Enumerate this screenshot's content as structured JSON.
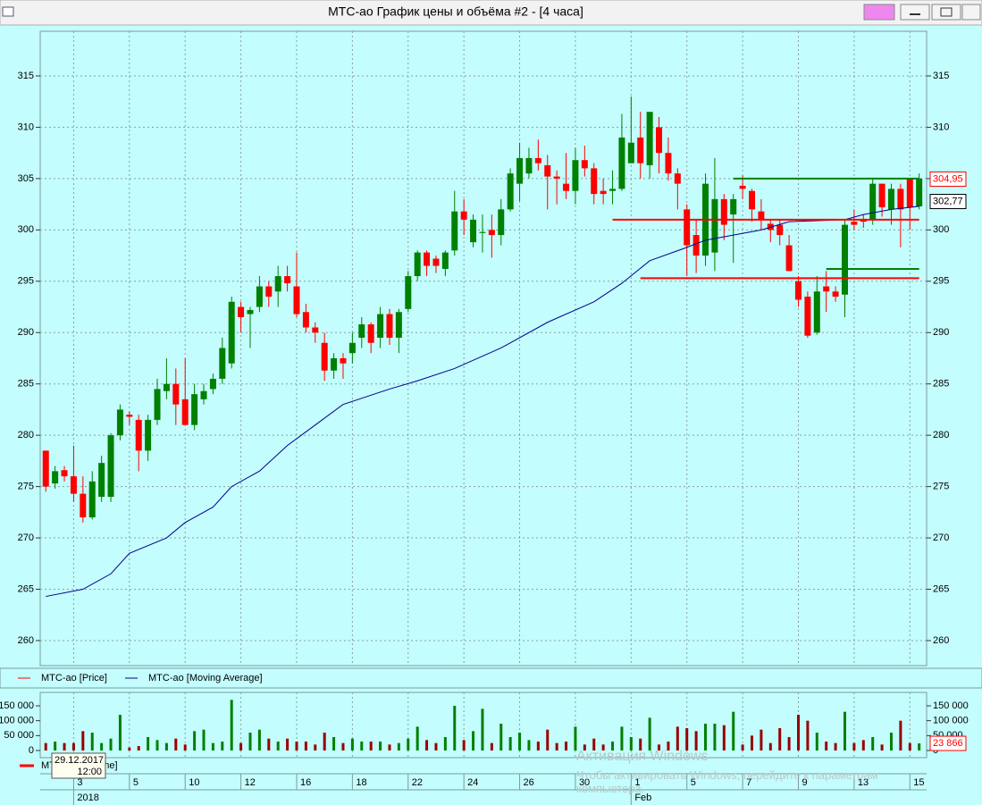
{
  "window": {
    "title": "МТС-ао График цены и объёма #2 - [4 часа]"
  },
  "tooltip": {
    "date": "29.12.2017",
    "time": "12:00"
  },
  "watermark": {
    "title": "Активация Windows",
    "text": "Чтобы активировать Windows, перейдите к параметрам компьютера."
  },
  "chart_data": [
    {
      "type": "candlestick",
      "xlim": [
        -0.6,
        94.8
      ],
      "ylim": [
        257.56,
        319.35
      ],
      "yticks": [
        260,
        265,
        270,
        275,
        280,
        285,
        290,
        295,
        300,
        305,
        310,
        315
      ],
      "grid": true,
      "categories": [
        null,
        null,
        null,
        "3",
        null,
        null,
        null,
        null,
        null,
        "5",
        null,
        null,
        null,
        null,
        null,
        "10",
        null,
        null,
        null,
        null,
        null,
        "12",
        null,
        null,
        null,
        null,
        null,
        "16",
        null,
        null,
        null,
        null,
        null,
        "18",
        null,
        null,
        null,
        null,
        null,
        "22",
        null,
        null,
        null,
        null,
        null,
        "24",
        null,
        null,
        null,
        null,
        null,
        "26",
        null,
        null,
        null,
        null,
        null,
        "30",
        null,
        null,
        null,
        null,
        null,
        "1",
        null,
        null,
        null,
        null,
        null,
        "5",
        null,
        null,
        null,
        null,
        null,
        "7",
        null,
        null,
        null,
        null,
        null,
        "9",
        null,
        null,
        null,
        null,
        null,
        "13",
        null,
        null,
        null,
        null,
        null,
        "15",
        null
      ],
      "categories2": [
        null,
        null,
        null,
        "2018",
        null,
        null,
        null,
        null,
        null,
        null,
        null,
        null,
        null,
        null,
        null,
        null,
        null,
        null,
        null,
        null,
        null,
        null,
        null,
        null,
        null,
        null,
        null,
        null,
        null,
        null,
        null,
        null,
        null,
        null,
        null,
        null,
        null,
        null,
        null,
        null,
        null,
        null,
        null,
        null,
        null,
        null,
        null,
        null,
        null,
        null,
        null,
        null,
        null,
        null,
        null,
        null,
        null,
        null,
        null,
        null,
        null,
        null,
        null,
        "Feb",
        null,
        null,
        null,
        null,
        null,
        null,
        null,
        null,
        null,
        null,
        null,
        null,
        null,
        null,
        null,
        null,
        null,
        null,
        null,
        null,
        null,
        null,
        null,
        null,
        null,
        null,
        null,
        null,
        null,
        null,
        null
      ],
      "series": [
        {
          "name": "МТС-ао [Price]",
          "color": "#ff0000",
          "up_color": "#008000",
          "open": [
            278.5,
            275.3,
            276.6,
            276,
            274.3,
            272,
            274,
            274,
            280,
            282,
            281.5,
            278.5,
            281.5,
            284.3,
            285,
            283.5,
            281,
            283.5,
            284.5,
            285.5,
            287,
            292.5,
            291.8,
            292.5,
            294.5,
            294,
            295.5,
            294.5,
            292,
            290.5,
            289,
            286.3,
            287.5,
            288,
            289.5,
            290.8,
            289.5,
            291.8,
            289.5,
            292.3,
            295.5,
            297.8,
            297.2,
            296.2,
            298,
            301.8,
            298.8,
            299.7,
            300,
            299.5,
            302,
            304.5,
            305.5,
            307,
            306.3,
            305.2,
            304.5,
            303.8,
            306.8,
            306,
            303.8,
            303.8,
            304,
            306.5,
            309,
            306.3,
            310,
            307.5,
            305.5,
            302,
            299.5,
            297.5,
            297.8,
            303,
            301.5,
            304.3,
            303.8,
            301.8,
            300.6,
            300.5,
            298.5,
            295,
            293.5,
            290,
            294.5,
            294,
            293.7,
            300.8,
            301,
            301,
            304.5,
            302,
            304,
            305,
            302.3
          ],
          "high": [
            278.5,
            277,
            277,
            279,
            276,
            276.5,
            278,
            280.2,
            283,
            282.3,
            282,
            282,
            285.5,
            287.5,
            286.5,
            287.5,
            285,
            285,
            286,
            289.5,
            293.5,
            293,
            292.5,
            295.5,
            295,
            296.5,
            296.5,
            297.8,
            292.8,
            291,
            290,
            288,
            288,
            290,
            291.5,
            291,
            292.5,
            292.3,
            292.3,
            296,
            298,
            298,
            297.5,
            298,
            303.8,
            303,
            301.5,
            301.5,
            301.5,
            303,
            306,
            308.5,
            308,
            308.8,
            307.3,
            305.8,
            307.5,
            308,
            308.2,
            306.5,
            305,
            305.8,
            311.3,
            313,
            311.5,
            311.5,
            311,
            309,
            306,
            302.5,
            301,
            305.5,
            307,
            303.5,
            303.5,
            305.3,
            304,
            303,
            301,
            301,
            299.5,
            295.5,
            294,
            295.5,
            296,
            294.5,
            301,
            302,
            301.5,
            305,
            304.5,
            304.5,
            304.5,
            305,
            305.5
          ],
          "low": [
            274.5,
            274.8,
            275.5,
            273.5,
            271.5,
            271.8,
            273.5,
            273.5,
            279.5,
            281,
            276.5,
            277.5,
            281,
            283.5,
            281,
            281,
            280.5,
            283,
            284,
            285,
            286.5,
            290,
            288.5,
            292,
            292.5,
            292.5,
            294,
            291.5,
            290,
            289,
            285.3,
            285.5,
            285.5,
            287,
            288.5,
            288,
            288.5,
            288.8,
            288,
            292,
            295,
            295.5,
            295.8,
            295.5,
            297.5,
            299.5,
            298.3,
            297.8,
            297.3,
            298.5,
            301.8,
            302.8,
            305,
            305.8,
            302,
            302.5,
            303,
            302.5,
            305.2,
            302.5,
            302.5,
            302.5,
            303.8,
            306.5,
            305,
            305,
            305.5,
            304.8,
            302,
            295.5,
            295.8,
            296.5,
            296,
            299,
            296.8,
            303,
            300.8,
            300,
            298.8,
            298.5,
            296,
            292.5,
            289.5,
            289.8,
            292,
            293,
            291.5,
            300,
            300.2,
            300.5,
            301.3,
            300.5,
            298.3,
            300,
            302
          ],
          "close": [
            275,
            276.5,
            276,
            274.3,
            272,
            275.5,
            277.3,
            280,
            282.5,
            281.8,
            278.5,
            281.5,
            284.5,
            285,
            283,
            281,
            284,
            284.3,
            285.5,
            288.5,
            293,
            291.5,
            292.2,
            294.5,
            293.5,
            295.5,
            294.8,
            291.8,
            290.5,
            290,
            286.3,
            287.5,
            287,
            289,
            290.8,
            289,
            291.8,
            289.5,
            292,
            295.5,
            297.8,
            296.5,
            296.5,
            297.8,
            301.8,
            301,
            301,
            299.8,
            299.5,
            302,
            305.5,
            307,
            307,
            306.5,
            305.2,
            305,
            303.8,
            306.8,
            306,
            303.5,
            303.5,
            304,
            309,
            308.5,
            306.5,
            311.5,
            307.5,
            305.5,
            304.5,
            298.5,
            297.5,
            304.5,
            303,
            300.5,
            303,
            304,
            302,
            301,
            300,
            299.5,
            296,
            293.2,
            289.7,
            294,
            294,
            293.5,
            300.5,
            300.5,
            300.8,
            304.5,
            302.2,
            304,
            302,
            302.2,
            305
          ]
        },
        {
          "name": "МТС-ао [Moving Average]",
          "color": "#00008b",
          "x": [
            0,
            4,
            7,
            9,
            13,
            15,
            18,
            20,
            23,
            26,
            29,
            32,
            37,
            40,
            44,
            49,
            54,
            59,
            62,
            65,
            69,
            71,
            74,
            77,
            80,
            86,
            88,
            91,
            94
          ],
          "values": [
            264.3,
            265,
            266.5,
            268.5,
            270,
            271.5,
            273,
            275,
            276.5,
            279,
            281,
            283,
            284.5,
            285.3,
            286.5,
            288.5,
            291,
            293,
            294.8,
            297,
            298.3,
            299,
            299.5,
            300,
            300.8,
            301,
            301.5,
            302,
            302.3
          ]
        }
      ],
      "levels": [
        {
          "value": 305,
          "from": 74,
          "to": 94,
          "color": "#008000"
        },
        {
          "value": 301,
          "from": 61,
          "to": 94,
          "color": "#ff0000"
        },
        {
          "value": 295.3,
          "from": 64,
          "to": 94,
          "color": "#ff0000"
        },
        {
          "value": 296.2,
          "from": 84,
          "to": 94,
          "color": "#008000"
        }
      ],
      "price_labels": [
        {
          "value": 304.95,
          "label": "304,95",
          "color": "#ff0000"
        },
        {
          "value": 302.77,
          "label": "302,77",
          "color": "#000000"
        }
      ]
    },
    {
      "type": "bar",
      "xlim": [
        -0.6,
        94.8
      ],
      "ylim": [
        -24000,
        195000
      ],
      "yticks": [
        0,
        {
          "value": 50000,
          "label": "50 000"
        },
        {
          "value": 100000,
          "label": "100 000"
        },
        {
          "value": 150000,
          "label": "150 000"
        }
      ],
      "series": [
        {
          "name": "МТС-ао [Volume]",
          "color": "#ff0000",
          "up_color": "#008000",
          "down_color": "#990000",
          "values": [
            25000,
            30000,
            25000,
            25000,
            65000,
            60000,
            25000,
            40000,
            120000,
            10000,
            15000,
            45000,
            35000,
            25000,
            40000,
            20000,
            65000,
            70000,
            25000,
            30000,
            170000,
            25000,
            60000,
            70000,
            40000,
            30000,
            40000,
            30000,
            30000,
            20000,
            60000,
            45000,
            25000,
            40000,
            30000,
            30000,
            30000,
            20000,
            25000,
            40000,
            80000,
            35000,
            25000,
            45000,
            150000,
            35000,
            65000,
            140000,
            25000,
            90000,
            45000,
            60000,
            35000,
            30000,
            70000,
            25000,
            30000,
            80000,
            20000,
            40000,
            20000,
            30000,
            80000,
            45000,
            40000,
            110000,
            20000,
            30000,
            80000,
            75000,
            65000,
            90000,
            90000,
            85000,
            130000,
            20000,
            50000,
            70000,
            25000,
            75000,
            45000,
            120000,
            100000,
            60000,
            30000,
            25000,
            130000,
            25000,
            35000,
            45000,
            20000,
            60000,
            100000,
            25000,
            23866
          ]
        }
      ],
      "last_label": {
        "value": 23866,
        "label": "23 866",
        "color": "#ff0000"
      }
    }
  ]
}
